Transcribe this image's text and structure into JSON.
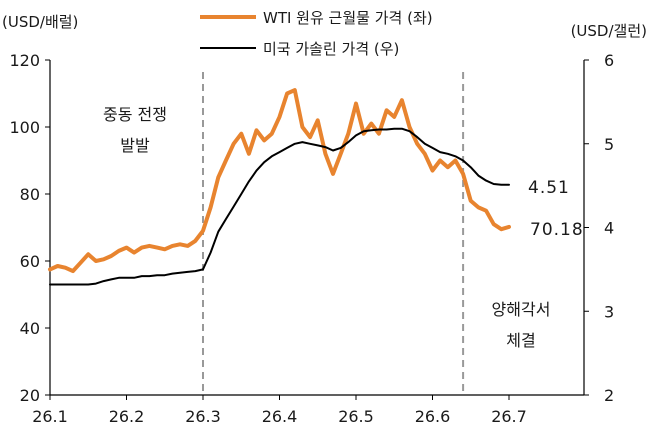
{
  "chart_data": {
    "type": "line",
    "y_left_unit": "(USD/배럴)",
    "y_right_unit": "(USD/갤런)",
    "ylim_left": [
      20,
      120
    ],
    "ylim_right": [
      2,
      6
    ],
    "yticks_left": [
      "20",
      "40",
      "60",
      "80",
      "100",
      "120"
    ],
    "yticks_right": [
      "2",
      "3",
      "4",
      "5",
      "6"
    ],
    "xlim": [
      26.1,
      26.75
    ],
    "xticks": [
      "26.1",
      "26.2",
      "26.3",
      "26.4",
      "26.5",
      "26.6",
      "26.7"
    ],
    "legend_placement": "top-center",
    "series": [
      {
        "name": "WTI 원유 근월물 가격 (좌)",
        "axis": "left",
        "color": "#E8842F",
        "x": [
          26.1,
          26.11,
          26.12,
          26.13,
          26.14,
          26.15,
          26.16,
          26.17,
          26.18,
          26.19,
          26.2,
          26.21,
          26.22,
          26.23,
          26.24,
          26.25,
          26.26,
          26.27,
          26.28,
          26.29,
          26.3,
          26.31,
          26.32,
          26.33,
          26.34,
          26.35,
          26.36,
          26.37,
          26.38,
          26.39,
          26.4,
          26.41,
          26.42,
          26.43,
          26.44,
          26.45,
          26.46,
          26.47,
          26.48,
          26.49,
          26.5,
          26.51,
          26.52,
          26.53,
          26.54,
          26.55,
          26.56,
          26.57,
          26.58,
          26.59,
          26.6,
          26.61,
          26.62,
          26.63,
          26.64,
          26.65,
          26.66,
          26.67,
          26.68,
          26.69,
          26.7
        ],
        "values": [
          57.5,
          58.5,
          58,
          57,
          59.5,
          62,
          60,
          60.5,
          61.5,
          63,
          64,
          62.5,
          64,
          64.5,
          64,
          63.5,
          64.5,
          65,
          64.5,
          66,
          69,
          76,
          85,
          90,
          95,
          98,
          92,
          99,
          96,
          98,
          103,
          110,
          111,
          100,
          97,
          102,
          92,
          86,
          92,
          98,
          107,
          98,
          101,
          98,
          105,
          103,
          108,
          100,
          95,
          92,
          87,
          90,
          88,
          90,
          86,
          78,
          76,
          75,
          71,
          69.5,
          70.18
        ]
      },
      {
        "name": "미국 가솔린 가격 (우)",
        "axis": "right",
        "color": "#000000",
        "x": [
          26.1,
          26.11,
          26.12,
          26.13,
          26.14,
          26.15,
          26.16,
          26.17,
          26.18,
          26.19,
          26.2,
          26.21,
          26.22,
          26.23,
          26.24,
          26.25,
          26.26,
          26.27,
          26.28,
          26.29,
          26.3,
          26.31,
          26.32,
          26.33,
          26.34,
          26.35,
          26.36,
          26.37,
          26.38,
          26.39,
          26.4,
          26.41,
          26.42,
          26.43,
          26.44,
          26.45,
          26.46,
          26.47,
          26.48,
          26.49,
          26.5,
          26.51,
          26.52,
          26.53,
          26.54,
          26.55,
          26.56,
          26.57,
          26.58,
          26.59,
          26.6,
          26.61,
          26.62,
          26.63,
          26.64,
          26.65,
          26.66,
          26.67,
          26.68,
          26.69,
          26.7
        ],
        "values": [
          3.32,
          3.32,
          3.32,
          3.32,
          3.32,
          3.32,
          3.33,
          3.36,
          3.38,
          3.4,
          3.4,
          3.4,
          3.42,
          3.42,
          3.43,
          3.43,
          3.45,
          3.46,
          3.47,
          3.48,
          3.5,
          3.7,
          3.95,
          4.1,
          4.25,
          4.4,
          4.55,
          4.68,
          4.78,
          4.85,
          4.9,
          4.95,
          5.0,
          5.02,
          5.0,
          4.98,
          4.96,
          4.92,
          4.95,
          5.02,
          5.1,
          5.15,
          5.16,
          5.17,
          5.17,
          5.18,
          5.18,
          5.15,
          5.08,
          5.0,
          4.95,
          4.9,
          4.88,
          4.85,
          4.8,
          4.72,
          4.62,
          4.56,
          4.52,
          4.51,
          4.51
        ]
      }
    ],
    "vlines": [
      26.3,
      26.64
    ],
    "annotations": [
      {
        "lines": [
          "중동 전쟁",
          "발발"
        ]
      },
      {
        "lines": [
          "양해각서",
          "체결"
        ]
      }
    ],
    "end_labels": [
      {
        "text": "4.51",
        "series": 1
      },
      {
        "text": "70.18",
        "series": 0
      }
    ]
  }
}
